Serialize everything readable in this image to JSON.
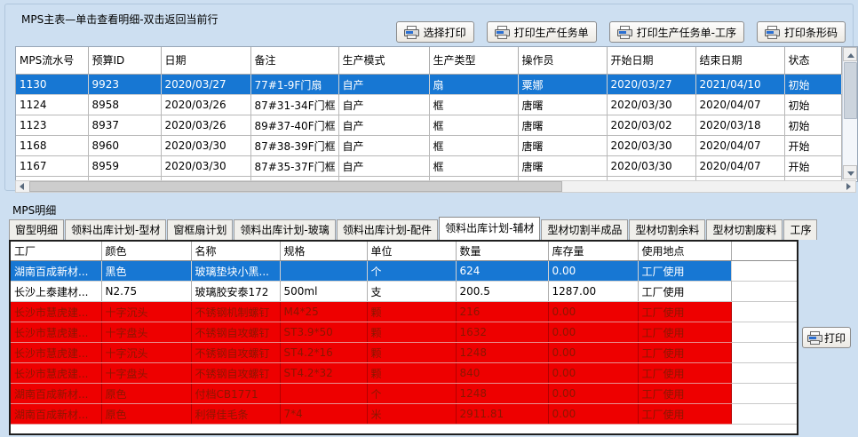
{
  "master_panel": {
    "title": "MPS主表—单击查看明细-双击返回当前行",
    "toolbar_buttons": [
      {
        "label": "选择打印",
        "icon": "printer-icon"
      },
      {
        "label": "打印生产任务单",
        "icon": "printer-icon"
      },
      {
        "label": "打印生产任务单-工序",
        "icon": "printer-icon"
      },
      {
        "label": "打印条形码",
        "icon": "printer-icon"
      }
    ],
    "table": {
      "columns": [
        "MPS流水号",
        "预算ID",
        "日期",
        "备注",
        "生产模式",
        "生产类型",
        "操作员",
        "开始日期",
        "结束日期",
        "状态"
      ],
      "selected_row_index": 0,
      "rows": [
        [
          "1130",
          "9923",
          "2020/03/27",
          "77#1-9F门扇",
          "自产",
          "扇",
          "粟娜",
          "2020/03/27",
          "2021/04/10",
          "初始"
        ],
        [
          "1124",
          "8958",
          "2020/03/26",
          "87#31-34F门框",
          "自产",
          "框",
          "唐曙",
          "2020/03/30",
          "2020/04/07",
          "初始"
        ],
        [
          "1123",
          "8937",
          "2020/03/26",
          "89#37-40F门框",
          "自产",
          "框",
          "唐曙",
          "2020/03/02",
          "2020/03/18",
          "初始"
        ],
        [
          "1168",
          "8960",
          "2020/03/30",
          "87#38-39F门框",
          "自产",
          "框",
          "唐曙",
          "2020/03/30",
          "2020/04/07",
          "开始"
        ],
        [
          "1167",
          "8959",
          "2020/03/30",
          "87#35-37F门框",
          "自产",
          "框",
          "唐曙",
          "2020/03/30",
          "2020/04/07",
          "开始"
        ]
      ]
    }
  },
  "detail_panel": {
    "title": "MPS明细",
    "tabs": [
      "窗型明细",
      "领料出库计划-型材",
      "窗框扇计划",
      "领料出库计划-玻璃",
      "领料出库计划-配件",
      "领料出库计划-辅材",
      "型材切割半成品",
      "型材切割余料",
      "型材切割废料",
      "工序"
    ],
    "active_tab": "领料出库计划-辅材",
    "print_button_label": "打印",
    "table": {
      "columns": [
        "工厂",
        "颜色",
        "名称",
        "规格",
        "单位",
        "数量",
        "库存量",
        "使用地点"
      ],
      "rows": [
        {
          "state": "selected",
          "cells": [
            "湖南百成新材...",
            "黑色",
            "玻璃垫块小黑...",
            "",
            "个",
            "624",
            "0.00",
            "工厂使用"
          ]
        },
        {
          "state": "normal",
          "cells": [
            "长沙上泰建材...",
            "N2.75",
            "玻璃胶安泰172",
            "500ml",
            "支",
            "200.5",
            "1287.00",
            "工厂使用"
          ]
        },
        {
          "state": "alert",
          "cells": [
            "长沙市慧虎建...",
            "十字沉头",
            "不锈钢机制螺钉",
            "M4*25",
            "颗",
            "216",
            "0.00",
            "工厂使用"
          ]
        },
        {
          "state": "alert",
          "cells": [
            "长沙市慧虎建...",
            "十字盘头",
            "不锈钢自攻螺钉",
            "ST3.9*50",
            "颗",
            "1632",
            "0.00",
            "工厂使用"
          ]
        },
        {
          "state": "alert",
          "cells": [
            "长沙市慧虎建...",
            "十字沉头",
            "不锈钢自攻螺钉",
            "ST4.2*16",
            "颗",
            "1248",
            "0.00",
            "工厂使用"
          ]
        },
        {
          "state": "alert",
          "cells": [
            "长沙市慧虎建...",
            "十字盘头",
            "不锈钢自攻螺钉",
            "ST4.2*32",
            "颗",
            "840",
            "0.00",
            "工厂使用"
          ]
        },
        {
          "state": "alert",
          "cells": [
            "湖南百成新材...",
            "原色",
            "付档CB1771",
            "",
            "个",
            "1248",
            "0.00",
            "工厂使用"
          ]
        },
        {
          "state": "alert",
          "cells": [
            "湖南百成新材...",
            "原色",
            "利得佳毛条",
            "7*4",
            "米",
            "2911.81",
            "0.00",
            "工厂使用"
          ]
        }
      ]
    }
  },
  "colors": {
    "window_bg": "#cddff1",
    "selected_row_bg": "#1777d3",
    "alert_row_bg": "#ee0000",
    "alert_row_text": "#8b1600"
  }
}
